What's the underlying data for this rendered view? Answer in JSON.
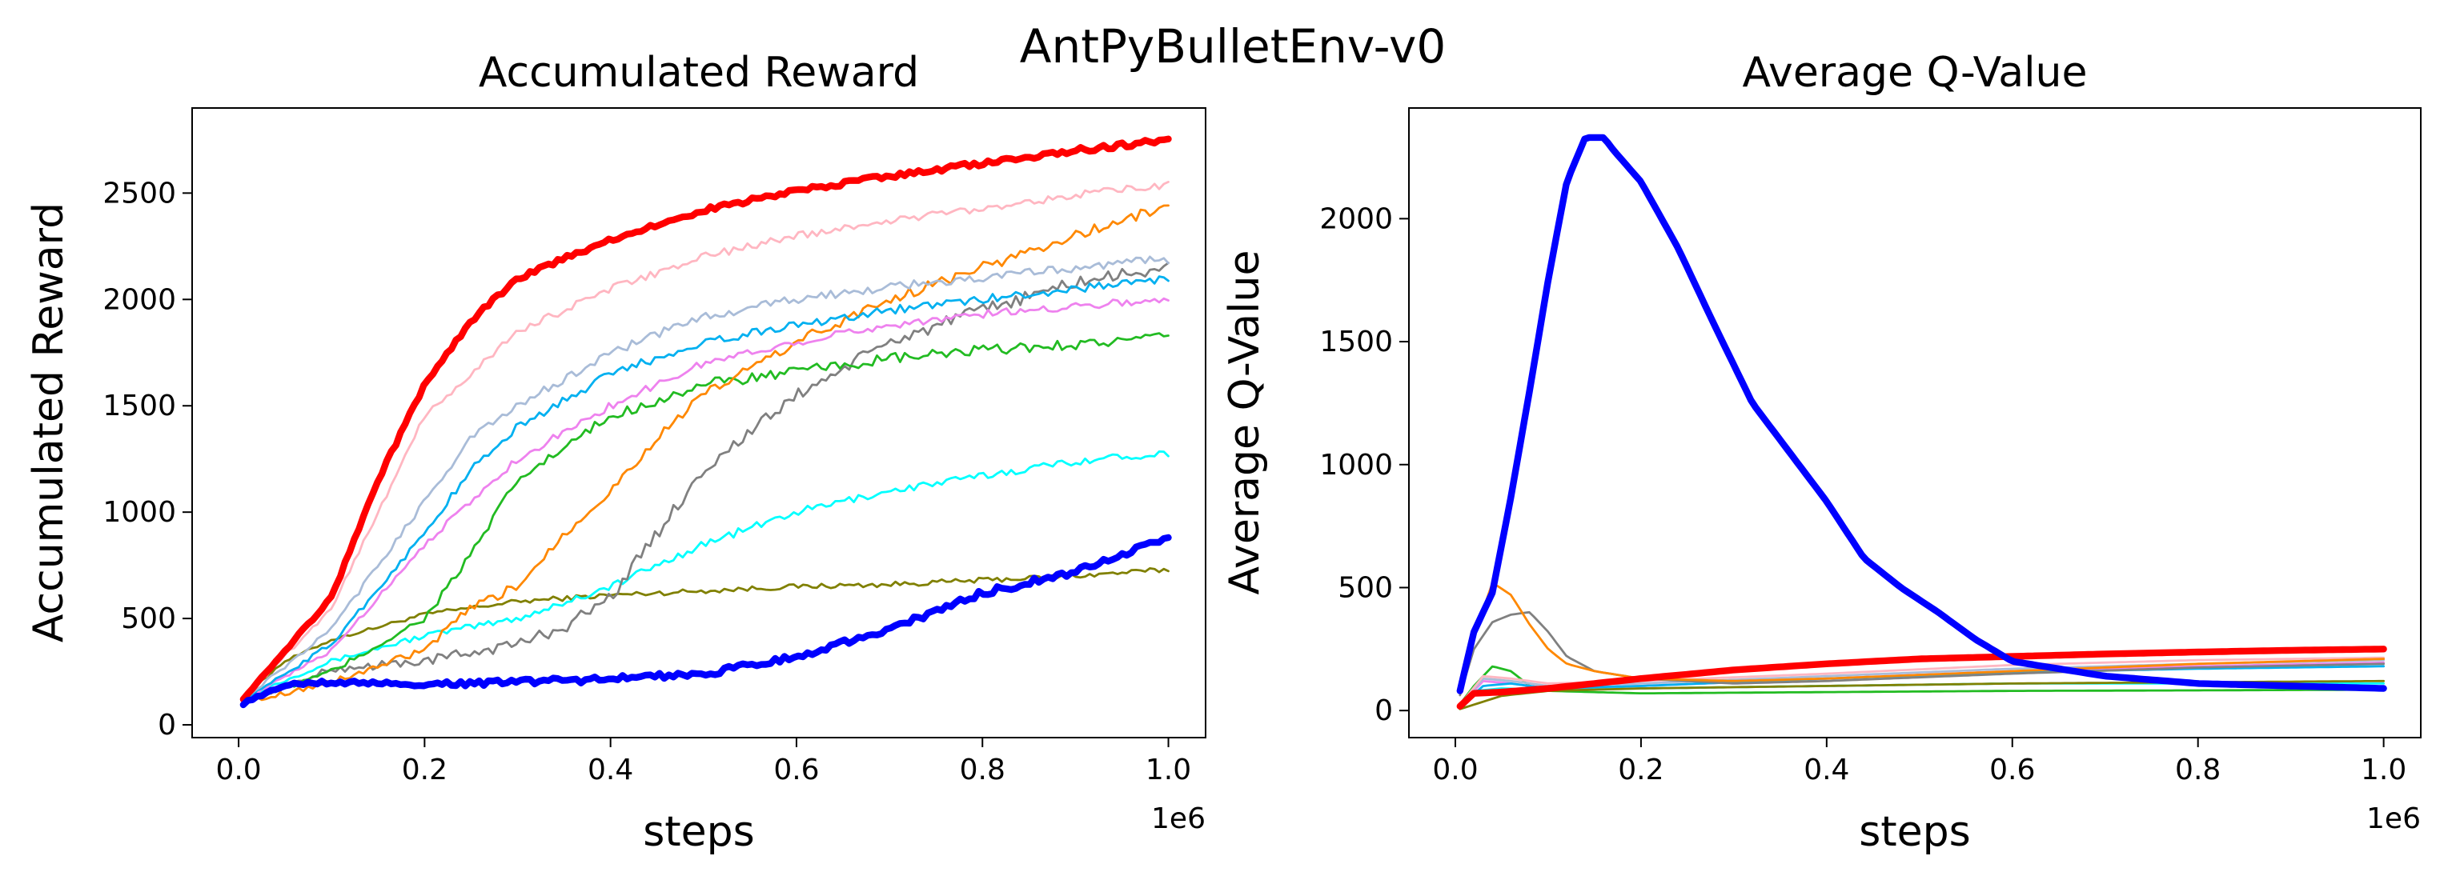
{
  "figure": {
    "suptitle": "AntPyBulletEnv-v0"
  },
  "chart_data": [
    {
      "type": "line",
      "title": "Accumulated Reward",
      "xlabel": "steps",
      "ylabel": "Accumulated Reward",
      "x_offset_label": "1e6",
      "xlim": [
        -0.05,
        1.04
      ],
      "ylim": [
        -60,
        2900
      ],
      "xticks": [
        0.0,
        0.2,
        0.4,
        0.6,
        0.8,
        1.0
      ],
      "xtick_labels": [
        "0.0",
        "0.2",
        "0.4",
        "0.6",
        "0.8",
        "1.0"
      ],
      "yticks": [
        0,
        500,
        1000,
        1500,
        2000,
        2500
      ],
      "ytick_labels": [
        "0",
        "500",
        "1000",
        "1500",
        "2000",
        "2500"
      ],
      "grid": false,
      "series": [
        {
          "name": "olive",
          "color": "#808000",
          "width": 1.4,
          "noise": 12,
          "x": [
            0,
            0.05,
            0.1,
            0.15,
            0.2,
            0.3,
            0.4,
            0.5,
            0.6,
            0.7,
            0.8,
            0.9,
            1.0
          ],
          "y": [
            120,
            300,
            400,
            460,
            520,
            580,
            610,
            630,
            650,
            660,
            680,
            700,
            730
          ]
        },
        {
          "name": "cyan",
          "color": "#00ffff",
          "width": 1.4,
          "noise": 18,
          "x": [
            0,
            0.1,
            0.2,
            0.3,
            0.4,
            0.5,
            0.6,
            0.7,
            0.8,
            0.9,
            1.0
          ],
          "y": [
            120,
            300,
            420,
            500,
            650,
            850,
            1000,
            1100,
            1170,
            1240,
            1280
          ]
        },
        {
          "name": "gray",
          "color": "#808080",
          "width": 1.4,
          "noise": 30,
          "x": [
            0,
            0.1,
            0.2,
            0.3,
            0.35,
            0.4,
            0.45,
            0.5,
            0.6,
            0.7,
            0.8,
            0.9,
            1.0
          ],
          "y": [
            100,
            260,
            300,
            380,
            460,
            600,
            900,
            1200,
            1550,
            1800,
            1950,
            2080,
            2150
          ]
        },
        {
          "name": "green",
          "color": "#22bb22",
          "width": 1.4,
          "noise": 25,
          "x": [
            0,
            0.1,
            0.2,
            0.25,
            0.3,
            0.35,
            0.4,
            0.5,
            0.6,
            0.7,
            0.8,
            0.9,
            1.0
          ],
          "y": [
            100,
            250,
            500,
            800,
            1150,
            1300,
            1450,
            1600,
            1660,
            1720,
            1760,
            1790,
            1820
          ]
        },
        {
          "name": "orange",
          "color": "#ff8800",
          "width": 1.4,
          "noise": 25,
          "x": [
            0,
            0.1,
            0.2,
            0.25,
            0.3,
            0.35,
            0.4,
            0.45,
            0.5,
            0.6,
            0.7,
            0.8,
            0.9,
            1.0
          ],
          "y": [
            100,
            200,
            350,
            550,
            650,
            900,
            1100,
            1350,
            1550,
            1800,
            2000,
            2150,
            2300,
            2440
          ]
        },
        {
          "name": "violet",
          "color": "#ee82ee",
          "width": 1.4,
          "noise": 18,
          "x": [
            0,
            0.1,
            0.2,
            0.3,
            0.4,
            0.5,
            0.6,
            0.7,
            0.8,
            0.9,
            1.0
          ],
          "y": [
            100,
            350,
            850,
            1250,
            1500,
            1700,
            1800,
            1880,
            1930,
            1970,
            2000
          ]
        },
        {
          "name": "deepskyblue",
          "color": "#00b0f0",
          "width": 1.4,
          "noise": 20,
          "x": [
            0,
            0.1,
            0.2,
            0.25,
            0.3,
            0.4,
            0.5,
            0.6,
            0.7,
            0.8,
            0.9,
            1.0
          ],
          "y": [
            100,
            380,
            900,
            1200,
            1400,
            1650,
            1800,
            1880,
            1950,
            2000,
            2050,
            2100
          ]
        },
        {
          "name": "lightsteelblue",
          "color": "#a9bcd8",
          "width": 1.4,
          "noise": 20,
          "x": [
            0,
            0.1,
            0.2,
            0.25,
            0.3,
            0.4,
            0.5,
            0.6,
            0.7,
            0.8,
            0.9,
            1.0
          ],
          "y": [
            100,
            450,
            1050,
            1350,
            1500,
            1750,
            1920,
            2000,
            2060,
            2100,
            2150,
            2190
          ]
        },
        {
          "name": "pink",
          "color": "#ffb6c1",
          "width": 1.4,
          "noise": 18,
          "x": [
            0,
            0.1,
            0.15,
            0.2,
            0.3,
            0.4,
            0.5,
            0.6,
            0.7,
            0.8,
            0.9,
            1.0
          ],
          "y": [
            100,
            550,
            1000,
            1450,
            1850,
            2050,
            2200,
            2300,
            2370,
            2430,
            2490,
            2540
          ]
        },
        {
          "name": "red",
          "color": "#ff0000",
          "width": 4.2,
          "noise": 12,
          "x": [
            0,
            0.1,
            0.15,
            0.2,
            0.25,
            0.3,
            0.4,
            0.5,
            0.6,
            0.7,
            0.8,
            0.9,
            1.0
          ],
          "y": [
            100,
            600,
            1150,
            1600,
            1900,
            2100,
            2280,
            2420,
            2510,
            2580,
            2640,
            2700,
            2750
          ]
        },
        {
          "name": "blue",
          "color": "#0000ff",
          "width": 4.2,
          "noise": 15,
          "x": [
            0,
            0.05,
            0.1,
            0.2,
            0.3,
            0.4,
            0.5,
            0.6,
            0.7,
            0.8,
            0.9,
            1.0
          ],
          "y": [
            90,
            190,
            200,
            190,
            200,
            215,
            240,
            320,
            450,
            620,
            720,
            880
          ]
        }
      ]
    },
    {
      "type": "line",
      "title": "Average Q-Value",
      "xlabel": "steps",
      "ylabel": "Average Q-Value",
      "x_offset_label": "1e6",
      "xlim": [
        -0.05,
        1.04
      ],
      "ylim": [
        -110,
        2450
      ],
      "xticks": [
        0.0,
        0.2,
        0.4,
        0.6,
        0.8,
        1.0
      ],
      "xtick_labels": [
        "0.0",
        "0.2",
        "0.4",
        "0.6",
        "0.8",
        "1.0"
      ],
      "yticks": [
        0,
        500,
        1000,
        1500,
        2000
      ],
      "ytick_labels": [
        "0",
        "500",
        "1000",
        "1500",
        "2000"
      ],
      "grid": false,
      "series": [
        {
          "name": "green",
          "color": "#22bb22",
          "width": 1.4,
          "noise": 0,
          "x": [
            0,
            0.02,
            0.04,
            0.06,
            0.08,
            0.1,
            0.2,
            0.4,
            0.6,
            0.8,
            1.0
          ],
          "y": [
            0,
            100,
            180,
            160,
            100,
            80,
            70,
            75,
            80,
            82,
            85
          ]
        },
        {
          "name": "cyan",
          "color": "#00ffff",
          "width": 1.4,
          "noise": 0,
          "x": [
            0,
            0.02,
            0.05,
            0.1,
            0.2,
            0.4,
            0.6,
            0.8,
            1.0
          ],
          "y": [
            0,
            80,
            90,
            85,
            90,
            100,
            110,
            110,
            110
          ]
        },
        {
          "name": "olive",
          "color": "#808000",
          "width": 1.4,
          "noise": 0,
          "x": [
            0,
            0.05,
            0.1,
            0.2,
            0.4,
            0.6,
            0.8,
            1.0
          ],
          "y": [
            0,
            60,
            80,
            90,
            100,
            110,
            115,
            120
          ]
        },
        {
          "name": "violet",
          "color": "#ee82ee",
          "width": 1.4,
          "noise": 0,
          "x": [
            0,
            0.03,
            0.06,
            0.1,
            0.2,
            0.4,
            0.6,
            0.8,
            1.0
          ],
          "y": [
            0,
            120,
            110,
            90,
            100,
            130,
            160,
            180,
            195
          ]
        },
        {
          "name": "deepskyblue",
          "color": "#00b0f0",
          "width": 1.4,
          "noise": 0,
          "x": [
            0,
            0.03,
            0.06,
            0.1,
            0.2,
            0.4,
            0.6,
            0.8,
            1.0
          ],
          "y": [
            0,
            100,
            110,
            90,
            100,
            130,
            155,
            170,
            180
          ]
        },
        {
          "name": "lightsteelblue",
          "color": "#a9bcd8",
          "width": 1.4,
          "noise": 0,
          "x": [
            0,
            0.03,
            0.06,
            0.1,
            0.2,
            0.4,
            0.6,
            0.8,
            1.0
          ],
          "y": [
            0,
            130,
            120,
            100,
            110,
            140,
            170,
            190,
            205
          ]
        },
        {
          "name": "pink",
          "color": "#ffb6c1",
          "width": 1.4,
          "noise": 0,
          "x": [
            0,
            0.03,
            0.06,
            0.1,
            0.2,
            0.4,
            0.6,
            0.8,
            1.0
          ],
          "y": [
            0,
            140,
            130,
            110,
            120,
            150,
            185,
            205,
            215
          ]
        },
        {
          "name": "gray",
          "color": "#808080",
          "width": 1.4,
          "noise": 0,
          "x": [
            0,
            0.02,
            0.04,
            0.06,
            0.08,
            0.1,
            0.12,
            0.15,
            0.2,
            0.3,
            0.4,
            0.6,
            0.8,
            1.0
          ],
          "y": [
            0,
            250,
            360,
            390,
            400,
            320,
            220,
            160,
            130,
            110,
            120,
            150,
            175,
            190
          ]
        },
        {
          "name": "orange",
          "color": "#ff8800",
          "width": 1.4,
          "noise": 0,
          "x": [
            0,
            0.02,
            0.04,
            0.06,
            0.08,
            0.1,
            0.12,
            0.15,
            0.2,
            0.3,
            0.4,
            0.6,
            0.8,
            1.0
          ],
          "y": [
            0,
            300,
            520,
            470,
            350,
            250,
            190,
            160,
            130,
            120,
            130,
            160,
            190,
            210
          ]
        },
        {
          "name": "red",
          "color": "#ff0000",
          "width": 4.2,
          "noise": 0,
          "x": [
            0,
            0.02,
            0.05,
            0.1,
            0.2,
            0.3,
            0.4,
            0.5,
            0.6,
            0.7,
            0.8,
            0.9,
            1.0
          ],
          "y": [
            0,
            70,
            75,
            90,
            130,
            165,
            190,
            210,
            220,
            230,
            238,
            245,
            250
          ]
        },
        {
          "name": "blue",
          "color": "#0000ff",
          "width": 4.2,
          "noise": 0,
          "x": [
            0,
            0.02,
            0.04,
            0.06,
            0.08,
            0.1,
            0.12,
            0.14,
            0.16,
            0.17,
            0.2,
            0.24,
            0.28,
            0.32,
            0.36,
            0.4,
            0.44,
            0.48,
            0.52,
            0.56,
            0.6,
            0.7,
            0.8,
            0.9,
            1.0
          ],
          "y": [
            0,
            320,
            480,
            870,
            1300,
            1750,
            2150,
            2330,
            2330,
            2280,
            2150,
            1880,
            1560,
            1250,
            1050,
            850,
            620,
            500,
            400,
            290,
            200,
            140,
            110,
            100,
            90
          ]
        }
      ]
    }
  ]
}
